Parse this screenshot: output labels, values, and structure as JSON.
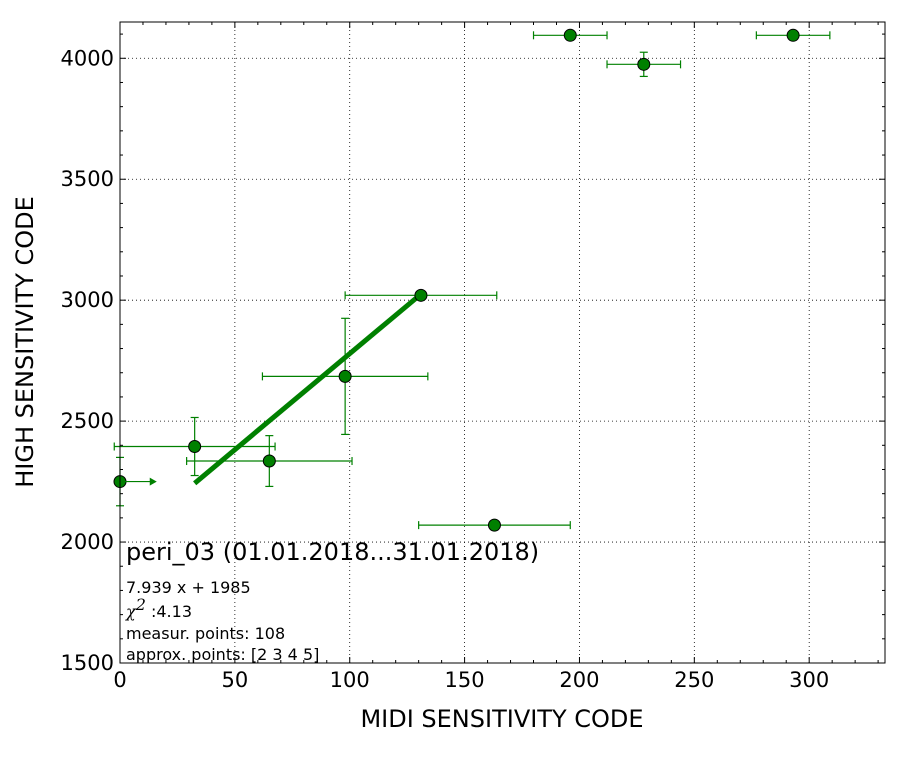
{
  "chart_data": {
    "type": "scatter",
    "title": "",
    "xlabel": "MIDI SENSITIVITY CODE",
    "ylabel": "HIGH SENSITIVITY CODE",
    "xlim": [
      0,
      333
    ],
    "ylim": [
      1500,
      4150
    ],
    "x_ticks": [
      0,
      50,
      100,
      150,
      200,
      250,
      300
    ],
    "y_ticks": [
      1500,
      2000,
      2500,
      3000,
      3500,
      4000
    ],
    "grid": true,
    "color": "#008000",
    "points": [
      {
        "x": 0,
        "y": 2250,
        "xerr": 0,
        "yerr": 100
      },
      {
        "x": 32.5,
        "y": 2395,
        "xerr": 35,
        "yerr": 120
      },
      {
        "x": 65,
        "y": 2335,
        "xerr": 36,
        "yerr": 105
      },
      {
        "x": 98,
        "y": 2685,
        "xerr": 36,
        "yerr": 240
      },
      {
        "x": 131,
        "y": 3020,
        "xerr": 33,
        "yerr": 0
      },
      {
        "x": 163,
        "y": 2070,
        "xerr": 33,
        "yerr": 0
      },
      {
        "x": 196,
        "y": 4095,
        "xerr": 16,
        "yerr": 0
      },
      {
        "x": 228,
        "y": 3975,
        "xerr": 16,
        "yerr": 50
      },
      {
        "x": 293,
        "y": 4095,
        "xerr": 16,
        "yerr": 0
      }
    ],
    "arrow_from_first_point_x_to": 16,
    "fit": {
      "label": "7.939 x + 1985",
      "slope": 7.939,
      "intercept": 1985,
      "x_range": [
        32.5,
        131
      ]
    },
    "annotations": {
      "title": "peri_03 (01.01.2018...31.01.2018)",
      "fit_label": "7.939 x + 1985",
      "chi_symbol": "χ",
      "chi_exp": "2",
      "chi_value": " :4.13",
      "measur": "measur. points: 108",
      "approx": "approx. points: [2 3 4 5]"
    }
  }
}
